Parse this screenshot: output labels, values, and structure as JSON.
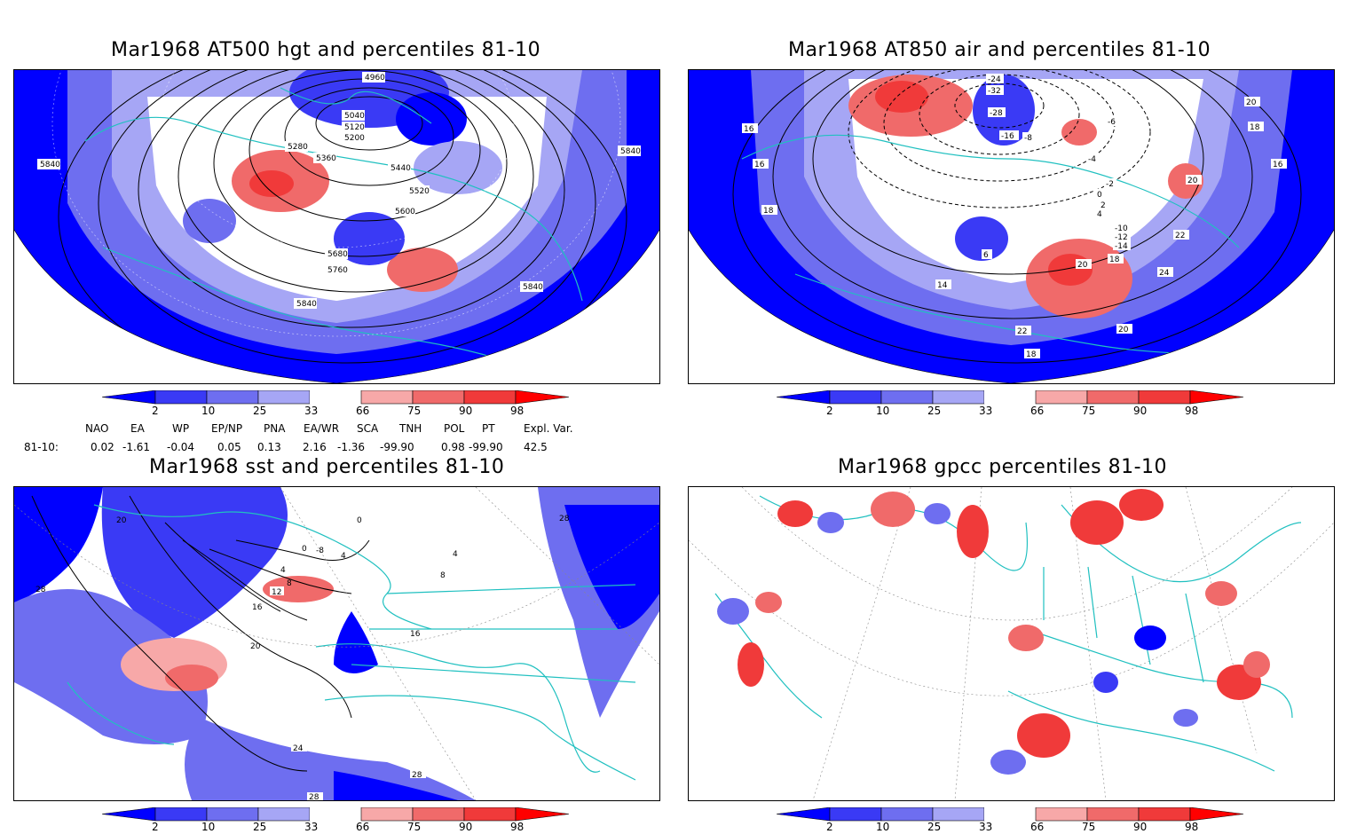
{
  "panels": {
    "p1": {
      "title": "Mar1968 AT500 hgt and percentiles 81-10",
      "contour_labels": [
        "4960",
        "5040",
        "5120",
        "5200",
        "5280",
        "5360",
        "5440",
        "5520",
        "5600",
        "5680",
        "5760",
        "5840",
        "5840",
        "5840",
        "5840"
      ]
    },
    "p2": {
      "title": "Mar1968 AT850 air and percentiles 81-10",
      "contour_labels": [
        "-24",
        "-32",
        "-28",
        "-16",
        "-8",
        "-6",
        "-4",
        "-2",
        "0",
        "2",
        "4",
        "-10",
        "-12",
        "-14",
        "20",
        "18",
        "16",
        "16",
        "18",
        "22",
        "24",
        "20",
        "14",
        "22",
        "20",
        "18",
        "6",
        "16",
        "18",
        "20"
      ]
    },
    "p3": {
      "title": "Mar1968 sst and percentiles 81-10",
      "contour_labels": [
        "28",
        "20",
        "0",
        "4",
        "0",
        "-8",
        "4",
        "8",
        "12",
        "16",
        "20",
        "24",
        "28",
        "28",
        "16",
        "8",
        "4",
        "28"
      ]
    },
    "p4": {
      "title": "Mar1968 gpcc percentiles 81-10",
      "contour_labels": []
    }
  },
  "colorbar": {
    "ticks": [
      "2",
      "10",
      "25",
      "33",
      "66",
      "75",
      "90",
      "98"
    ],
    "colors": {
      "below2": "#0000ff",
      "2_10": "#3a3af5",
      "10_25": "#6e6ef0",
      "25_33": "#a6a6f5",
      "33_66": "#ffffff",
      "66_75": "#f7a8a8",
      "75_90": "#f06a6a",
      "90_98": "#f03a3a",
      "above98": "#ff0000"
    }
  },
  "indices": {
    "headers": [
      "NAO",
      "EA",
      "WP",
      "EP/NP",
      "PNA",
      "EA/WR",
      "SCA",
      "TNH",
      "POL",
      "PT",
      "Expl. Var."
    ],
    "row_label": "81-10:",
    "values": [
      "0.02",
      "-1.61",
      "-0.04",
      "0.05",
      "0.13",
      "2.16",
      "-1.36",
      "-99.90",
      "0.98",
      "-99.90",
      "42.5"
    ]
  },
  "colors": {
    "coast": "#20c0c0",
    "contour": "#000000",
    "frame": "#000000"
  }
}
